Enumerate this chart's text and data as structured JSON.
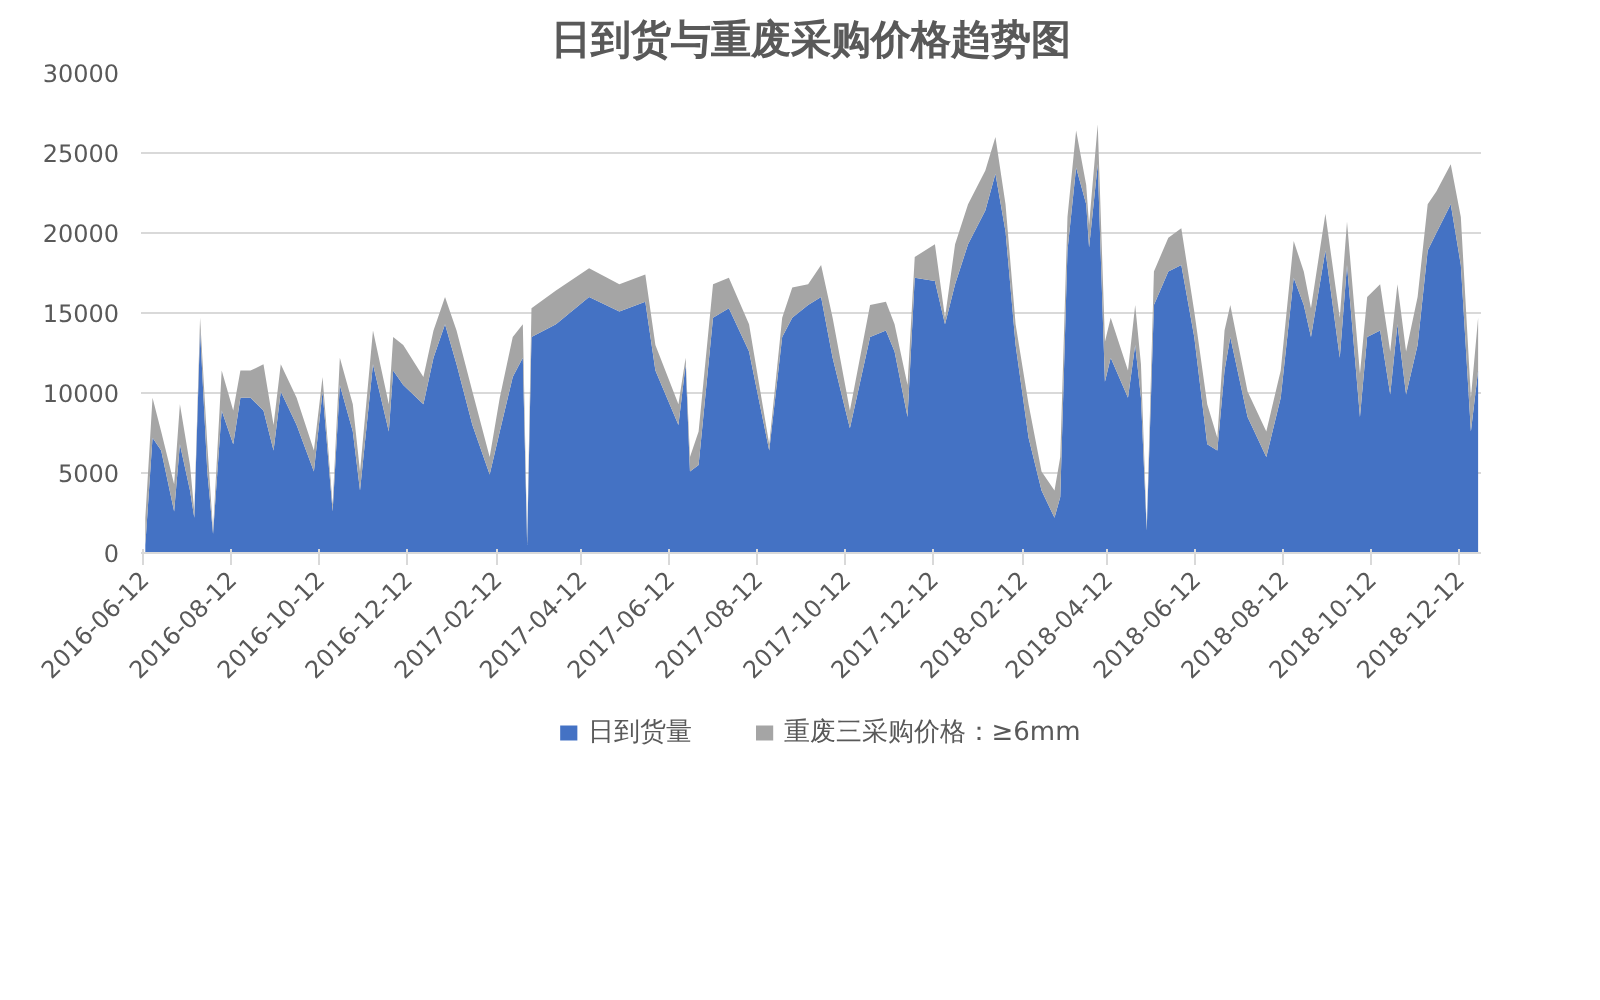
{
  "chart_data": {
    "type": "area",
    "title": "日到货与重废采购价格趋势图",
    "stacked": true,
    "legend": "bottom",
    "grid": "y",
    "x": [
      "2016-06-13",
      "2016-06-18",
      "2016-06-24",
      "2016-07-03",
      "2016-07-07",
      "2016-07-14",
      "2016-07-17",
      "2016-07-21",
      "2016-07-26",
      "2016-07-30",
      "2016-08-05",
      "2016-08-13",
      "2016-08-18",
      "2016-08-25",
      "2016-09-03",
      "2016-09-10",
      "2016-09-15",
      "2016-09-26",
      "2016-10-08",
      "2016-10-14",
      "2016-10-21",
      "2016-10-26",
      "2016-11-04",
      "2016-11-09",
      "2016-11-18",
      "2016-11-29",
      "2016-12-02",
      "2016-12-09",
      "2016-12-23",
      "2016-12-30",
      "2017-01-07",
      "2017-01-15",
      "2017-01-26",
      "2017-02-07",
      "2017-02-14",
      "2017-02-23",
      "2017-03-02",
      "2017-03-05",
      "2017-03-08",
      "2017-03-25",
      "2017-04-17",
      "2017-05-08",
      "2017-05-26",
      "2017-06-02",
      "2017-06-18",
      "2017-06-23",
      "2017-06-26",
      "2017-07-02",
      "2017-07-12",
      "2017-07-23",
      "2017-08-06",
      "2017-08-20",
      "2017-08-29",
      "2017-09-05",
      "2017-09-16",
      "2017-09-25",
      "2017-10-03",
      "2017-10-15",
      "2017-10-29",
      "2017-11-09",
      "2017-11-15",
      "2017-11-24",
      "2017-11-29",
      "2017-12-13",
      "2017-12-20",
      "2017-12-27",
      "2018-01-05",
      "2018-01-17",
      "2018-01-24",
      "2018-01-31",
      "2018-02-07",
      "2018-02-16",
      "2018-02-25",
      "2018-03-06",
      "2018-03-10",
      "2018-03-15",
      "2018-03-21",
      "2018-03-28",
      "2018-03-30",
      "2018-04-05",
      "2018-04-10",
      "2018-04-14",
      "2018-04-26",
      "2018-05-01",
      "2018-05-05",
      "2018-05-09",
      "2018-05-14",
      "2018-05-24",
      "2018-06-02",
      "2018-06-11",
      "2018-06-20",
      "2018-06-27",
      "2018-07-02",
      "2018-07-06",
      "2018-07-18",
      "2018-07-31",
      "2018-08-10",
      "2018-08-19",
      "2018-08-26",
      "2018-08-31",
      "2018-09-10",
      "2018-09-20",
      "2018-09-25",
      "2018-10-04",
      "2018-10-09",
      "2018-10-18",
      "2018-10-25",
      "2018-10-30",
      "2018-11-05",
      "2018-11-13",
      "2018-11-20",
      "2018-11-26",
      "2018-12-06",
      "2018-12-13",
      "2018-12-20",
      "2018-12-25"
    ],
    "series": [
      {
        "name": "日到货量",
        "color": "#4472c4",
        "values": [
          500,
          7200,
          6400,
          2600,
          6800,
          3900,
          2200,
          13900,
          5100,
          1200,
          8900,
          6800,
          9700,
          9700,
          8900,
          6400,
          10100,
          8000,
          5100,
          10100,
          2600,
          10500,
          7600,
          3900,
          11800,
          7600,
          11400,
          10500,
          9300,
          12200,
          14300,
          11800,
          8000,
          4900,
          7600,
          11000,
          12200,
          500,
          13500,
          14300,
          16000,
          15100,
          15700,
          11400,
          8000,
          11800,
          5100,
          5500,
          14700,
          15300,
          12600,
          6400,
          13500,
          14700,
          15500,
          16000,
          12200,
          7800,
          13500,
          13900,
          12600,
          8500,
          17200,
          17000,
          14300,
          16800,
          19300,
          21400,
          23700,
          20100,
          13000,
          7200,
          3900,
          2200,
          3500,
          18900,
          24100,
          21800,
          19100,
          24300,
          10700,
          12200,
          9700,
          13000,
          9700,
          1400,
          15500,
          17600,
          18000,
          13500,
          6800,
          6400,
          11400,
          13500,
          8500,
          6000,
          9700,
          17200,
          15500,
          13500,
          18900,
          12200,
          18000,
          8500,
          13500,
          13900,
          9900,
          14300,
          9900,
          13000,
          18900,
          20000,
          21800,
          18000,
          7600,
          11400
        ]
      },
      {
        "name": "重废三采购价格：≥6mm",
        "color": "#a5a5a5",
        "values": [
          1700,
          2500,
          1200,
          1700,
          2500,
          1600,
          400,
          800,
          1700,
          200,
          2500,
          2100,
          1700,
          1700,
          2900,
          1600,
          1700,
          1700,
          1300,
          900,
          400,
          1700,
          1700,
          1200,
          2100,
          1700,
          2100,
          2500,
          1700,
          1700,
          1700,
          2100,
          2100,
          1100,
          2100,
          2500,
          2100,
          300,
          1800,
          2100,
          1800,
          1700,
          1700,
          1600,
          1300,
          400,
          900,
          2100,
          2100,
          1900,
          1700,
          400,
          1200,
          1900,
          1300,
          2000,
          2500,
          1100,
          2000,
          1800,
          1700,
          2000,
          1300,
          2300,
          400,
          2500,
          2500,
          2500,
          2300,
          1700,
          1300,
          2100,
          1200,
          1700,
          2500,
          2100,
          2300,
          1200,
          1400,
          2500,
          2500,
          2500,
          1700,
          2500,
          2100,
          200,
          2100,
          2100,
          2300,
          1600,
          2500,
          800,
          2500,
          2000,
          1600,
          1600,
          1700,
          2300,
          2100,
          1800,
          2300,
          2500,
          2700,
          2700,
          2500,
          2900,
          2700,
          2500,
          2700,
          3000,
          2900,
          2600,
          2500,
          3000,
          2100,
          3300
        ]
      }
    ],
    "xlim": [
      "2016-06-10",
      "2018-12-27"
    ],
    "xticks": [
      "2016-06-12",
      "2016-08-12",
      "2016-10-12",
      "2016-12-12",
      "2017-02-12",
      "2017-04-12",
      "2017-06-12",
      "2017-08-12",
      "2017-10-12",
      "2017-12-12",
      "2018-02-12",
      "2018-04-12",
      "2018-06-12",
      "2018-08-12",
      "2018-10-12",
      "2018-12-12"
    ],
    "ylim": [
      0,
      30000
    ],
    "yticks": [
      0,
      5000,
      10000,
      15000,
      20000,
      25000,
      30000
    ]
  }
}
